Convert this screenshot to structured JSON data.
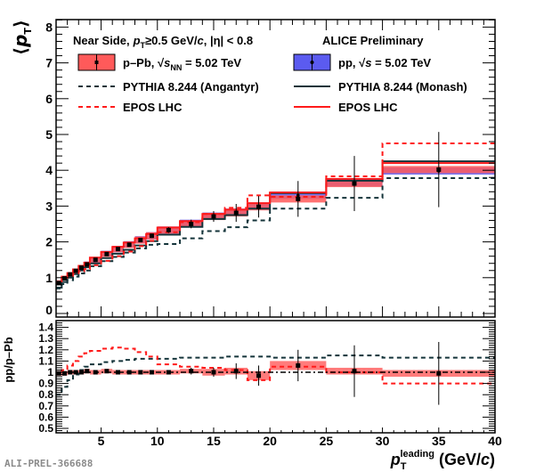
{
  "chart_data": [
    {
      "type": "line",
      "panel": "main",
      "title": "",
      "ylabel": "⟨p_T⟩",
      "xlabel": "",
      "xlim": [
        1,
        40
      ],
      "ylim": [
        0,
        8.2
      ],
      "yticks": [
        "0",
        "1",
        "2",
        "3",
        "4",
        "5",
        "6",
        "7",
        "8"
      ],
      "header": {
        "selection_prefix": "Near Side,",
        "selection_pt": "p",
        "selection_pt_sub": "T",
        "selection_rest": "≥0.5 GeV/",
        "selection_c": "c",
        "selection_eta": ", |η| < 0.8",
        "experiment": "ALICE Preliminary"
      },
      "legend": [
        {
          "label": "p–Pb, √s_NN = 5.02 TeV",
          "label_main": "p–Pb, ",
          "label_root": "√",
          "label_s": "s",
          "label_sub": "NN",
          "label_tail": " = 5.02 TeV",
          "style": "box",
          "color": "#ff5a5a"
        },
        {
          "label": "pp, √s = 5.02 TeV",
          "label_main": "pp, ",
          "label_root": "√",
          "label_s": "s",
          "label_tail": " = 5.02 TeV",
          "style": "box",
          "color": "#5b5bf0"
        },
        {
          "label": "PYTHIA 8.244 (Angantyr)",
          "style": "dashed",
          "color": "#14343a"
        },
        {
          "label": "PYTHIA 8.244 (Monash)",
          "style": "solid",
          "color": "#14343a"
        },
        {
          "label": "EPOS LHC",
          "style": "dashed",
          "color": "#ff1a1a"
        },
        {
          "label": "EPOS LHC",
          "style": "solid",
          "color": "#ff1a1a"
        }
      ],
      "bin_edges": [
        1,
        1.5,
        2,
        2.5,
        3,
        3.5,
        4,
        5,
        6,
        7,
        8,
        9,
        10,
        12,
        14,
        16,
        18,
        20,
        25,
        30,
        40
      ],
      "series": [
        {
          "name": "p–Pb data",
          "kind": "data",
          "values": [
            0.85,
            0.98,
            1.09,
            1.19,
            1.28,
            1.37,
            1.5,
            1.66,
            1.8,
            1.92,
            2.05,
            2.17,
            2.33,
            2.5,
            2.71,
            2.81,
            2.98,
            3.2,
            3.63,
            4.02
          ],
          "stat_err": [
            0.02,
            0.02,
            0.02,
            0.02,
            0.02,
            0.02,
            0.03,
            0.03,
            0.04,
            0.04,
            0.05,
            0.06,
            0.08,
            0.12,
            0.15,
            0.25,
            0.3,
            0.5,
            0.77,
            1.05
          ],
          "sys_err": [
            0.05,
            0.05,
            0.06,
            0.06,
            0.07,
            0.07,
            0.08,
            0.08,
            0.09,
            0.09,
            0.1,
            0.1,
            0.1,
            0.1,
            0.1,
            0.1,
            0.1,
            0.1,
            0.1,
            0.1
          ],
          "color": "#ff5a5a"
        },
        {
          "name": "pp data",
          "kind": "data",
          "values": [
            0.86,
            0.98,
            1.09,
            1.19,
            1.28,
            1.38,
            1.5,
            1.67,
            1.8,
            1.93,
            2.06,
            2.17,
            2.33,
            2.52,
            2.72,
            2.83,
            3.0,
            3.3,
            3.65,
            3.98
          ],
          "color": "#5b5bf0"
        },
        {
          "name": "PYTHIA 8.244 (Angantyr)",
          "kind": "dashed",
          "values": [
            0.7,
            0.82,
            0.93,
            1.03,
            1.12,
            1.2,
            1.32,
            1.46,
            1.58,
            1.7,
            1.82,
            1.92,
            1.94,
            2.1,
            2.3,
            2.41,
            2.6,
            2.93,
            3.23,
            3.78
          ],
          "color": "#14343a"
        },
        {
          "name": "PYTHIA 8.244 (Monash)",
          "kind": "solid",
          "values": [
            0.72,
            0.88,
            1.0,
            1.1,
            1.2,
            1.29,
            1.4,
            1.55,
            1.67,
            1.78,
            1.9,
            2.02,
            2.2,
            2.42,
            2.64,
            2.75,
            2.93,
            3.36,
            3.71,
            4.25
          ],
          "color": "#14343a"
        },
        {
          "name": "EPOS LHC (dashed)",
          "kind": "dashed",
          "values": [
            0.84,
            0.96,
            1.05,
            1.12,
            1.18,
            1.24,
            1.35,
            1.47,
            1.6,
            1.73,
            1.88,
            2.03,
            2.27,
            2.55,
            2.78,
            2.95,
            3.3,
            3.26,
            3.83,
            4.75
          ],
          "color": "#ff1a1a"
        },
        {
          "name": "EPOS LHC (solid)",
          "kind": "solid",
          "values": [
            0.9,
            1.03,
            1.13,
            1.23,
            1.33,
            1.42,
            1.56,
            1.72,
            1.86,
            1.98,
            2.1,
            2.22,
            2.4,
            2.58,
            2.78,
            2.9,
            3.08,
            3.38,
            3.76,
            4.2
          ],
          "color": "#ff1a1a"
        }
      ]
    },
    {
      "type": "line",
      "panel": "ratio",
      "ylabel": "pp/p–Pb",
      "xlabel": "p_T^leading (GeV/c)",
      "xlabel_parts": {
        "p": "p",
        "sub": "T",
        "sup": "leading",
        "unit": " (GeV/",
        "c": "c",
        "close": ")"
      },
      "xlim": [
        1,
        40
      ],
      "ylim": [
        0.45,
        1.45
      ],
      "yticks": [
        "0.5",
        "0.6",
        "0.7",
        "0.8",
        "0.9",
        "1",
        "1.1",
        "1.2",
        "1.3",
        "1.4"
      ],
      "xticks": [
        "5",
        "10",
        "15",
        "20",
        "25",
        "30",
        "35",
        "40"
      ],
      "bin_edges": [
        1,
        1.5,
        2,
        2.5,
        3,
        3.5,
        4,
        5,
        6,
        7,
        8,
        9,
        10,
        12,
        14,
        16,
        18,
        20,
        25,
        30,
        40
      ],
      "series": [
        {
          "name": "pp/p–Pb data",
          "kind": "data",
          "values": [
            0.99,
            0.99,
            1.0,
            1.0,
            1.0,
            1.01,
            1.0,
            1.01,
            1.0,
            1.0,
            1.0,
            1.0,
            1.0,
            1.01,
            1.0,
            1.01,
            0.97,
            1.06,
            1.01,
            0.99
          ],
          "stat_err": [
            0.01,
            0.01,
            0.01,
            0.01,
            0.01,
            0.01,
            0.01,
            0.01,
            0.01,
            0.01,
            0.01,
            0.01,
            0.02,
            0.03,
            0.04,
            0.07,
            0.09,
            0.14,
            0.23,
            0.28
          ],
          "sys_err": [
            0.02,
            0.02,
            0.02,
            0.02,
            0.02,
            0.02,
            0.02,
            0.02,
            0.02,
            0.02,
            0.02,
            0.02,
            0.02,
            0.02,
            0.03,
            0.03,
            0.04,
            0.04,
            0.03,
            0.03
          ],
          "color": "#ff5a5a"
        },
        {
          "name": "PYTHIA 8.244 (Angantyr)",
          "kind": "dashed",
          "values": [
            0.8,
            0.87,
            0.93,
            0.98,
            1.02,
            1.05,
            1.07,
            1.09,
            1.1,
            1.11,
            1.12,
            1.12,
            1.12,
            1.13,
            1.13,
            1.14,
            1.14,
            1.13,
            1.15,
            1.13
          ],
          "color": "#14343a"
        },
        {
          "name": "EPOS LHC",
          "kind": "dashed",
          "values": [
            0.98,
            1.02,
            1.06,
            1.1,
            1.14,
            1.17,
            1.19,
            1.21,
            1.22,
            1.21,
            1.18,
            1.14,
            1.07,
            1.05,
            1.04,
            1.02,
            0.93,
            1.05,
            1.0,
            0.9
          ],
          "color": "#ff1a1a"
        },
        {
          "name": "unity",
          "kind": "dashdot",
          "values_const": 1.0,
          "color": "#000000"
        }
      ]
    }
  ],
  "watermark": "ALI-PREL-366688"
}
